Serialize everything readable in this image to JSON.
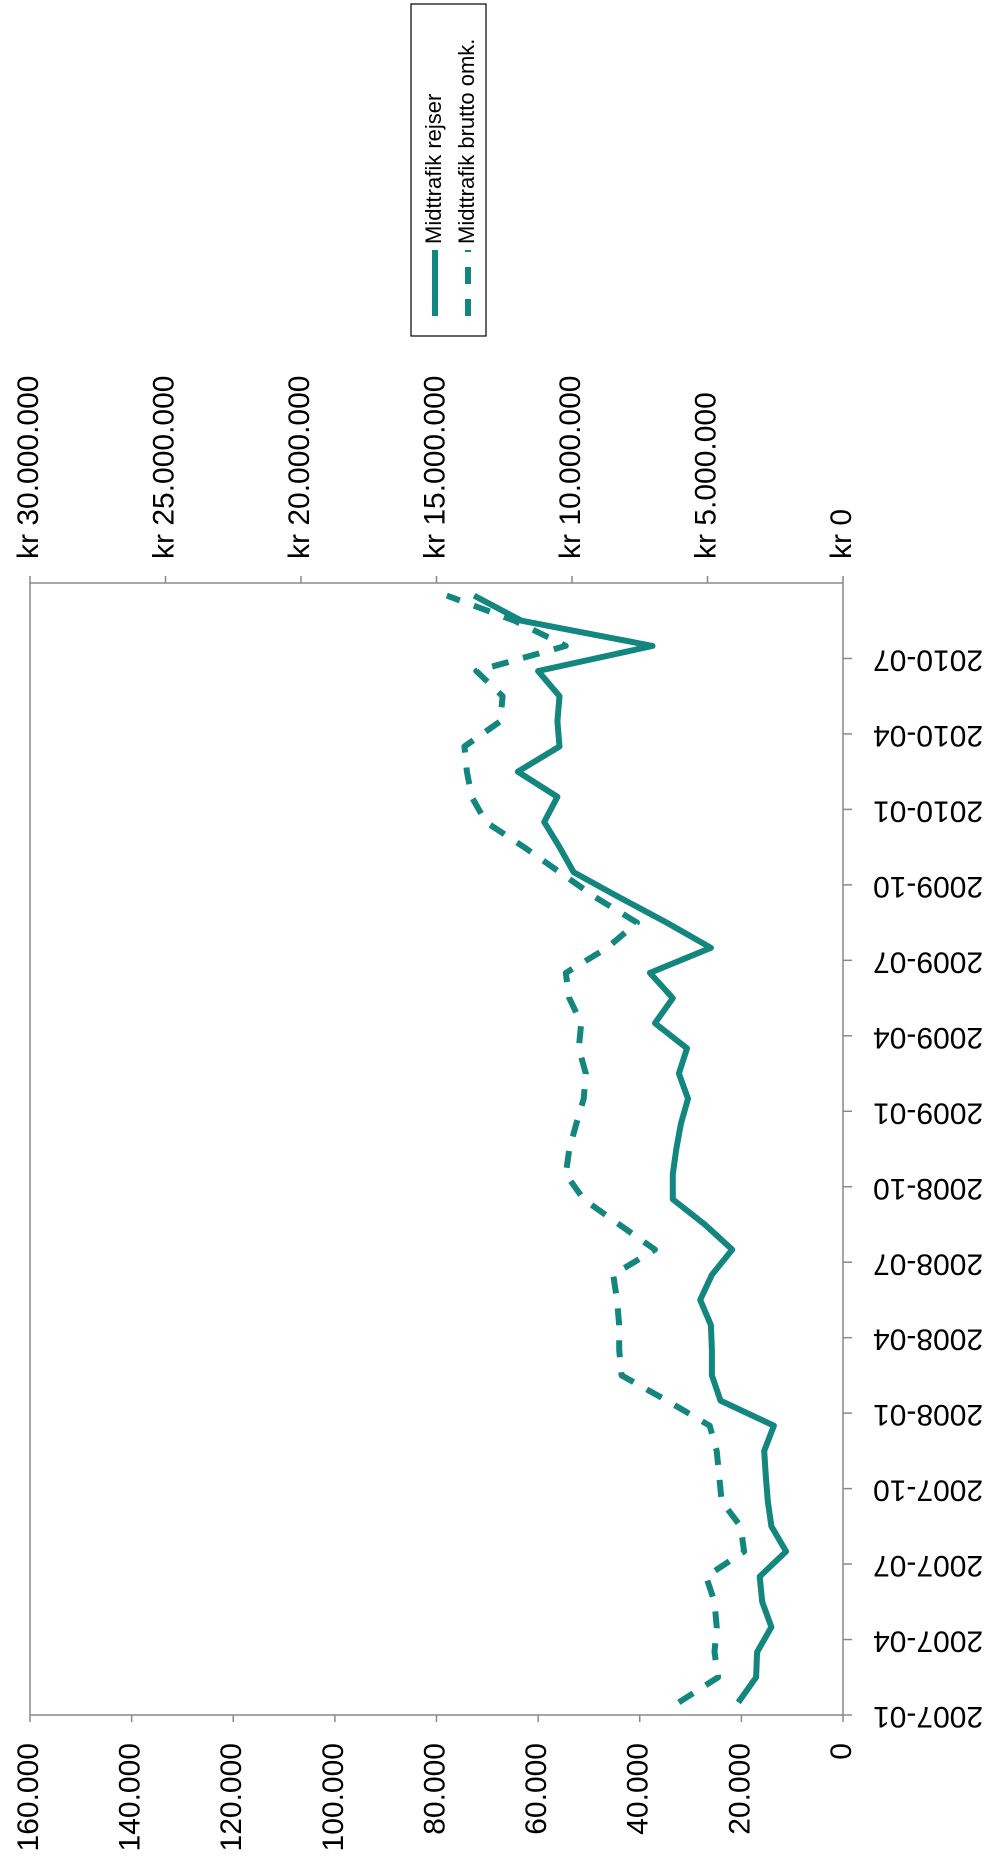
{
  "chart_data": {
    "type": "line",
    "categories": [
      "2007-01",
      null,
      null,
      "2007-04",
      null,
      null,
      "2007-07",
      null,
      null,
      "2007-10",
      null,
      null,
      "2008-01",
      null,
      null,
      "2008-04",
      null,
      null,
      "2008-07",
      null,
      null,
      "2008-10",
      null,
      null,
      "2009-01",
      null,
      null,
      "2009-04",
      null,
      null,
      "2009-07",
      null,
      null,
      "2009-10",
      null,
      null,
      "2010-01",
      null,
      null,
      "2010-04",
      null,
      null,
      "2010-07",
      null,
      null
    ],
    "series": [
      {
        "name": "Midttrafik rejser",
        "color": "#13877f",
        "style": "solid",
        "values": [
          20600,
          17100,
          16900,
          14100,
          15900,
          16400,
          11200,
          14100,
          14800,
          15200,
          15500,
          13600,
          24100,
          25800,
          25800,
          26000,
          28100,
          25800,
          21800,
          27200,
          33500,
          33500,
          32800,
          31900,
          30500,
          32300,
          30700,
          37000,
          33500,
          38000,
          26000,
          34700,
          44000,
          53000,
          55800,
          58800,
          56200,
          64000,
          55800,
          56200,
          55800,
          60000,
          37500,
          63300,
          72600
        ]
      },
      {
        "name": "Midttrafik brutto omk.",
        "color": "#13877f",
        "style": "dashed",
        "axis": "y2",
        "values": [
          6060000,
          4610000,
          4740000,
          4660000,
          4740000,
          5050000,
          3650000,
          3780000,
          4480000,
          4570000,
          4660000,
          4920000,
          6500000,
          8170000,
          8260000,
          8260000,
          8340000,
          8480000,
          6940000,
          8260000,
          9570000,
          10230000,
          10100000,
          9840000,
          9570000,
          9490000,
          9750000,
          9660000,
          10100000,
          10230000,
          8700000,
          7600000,
          9130000,
          10450000,
          11770000,
          13180000,
          13700000,
          13880000,
          13970000,
          12650000,
          12560000,
          13530000,
          10230000,
          12120000,
          14620000
        ]
      }
    ],
    "ylim": [
      0,
      160000
    ],
    "yticks": [
      0,
      {
        "value": 20000,
        "label": "20.000"
      },
      {
        "value": 40000,
        "label": "40.000"
      },
      {
        "value": 60000,
        "label": "60.000"
      },
      {
        "value": 80000,
        "label": "80.000"
      },
      {
        "value": 100000,
        "label": "100.000"
      },
      {
        "value": 120000,
        "label": "120.000"
      },
      {
        "value": 140000,
        "label": "140.000"
      },
      {
        "value": 160000,
        "label": "160.000"
      }
    ],
    "y2lim": [
      0,
      30000000
    ],
    "y2ticks": [
      {
        "value": 0,
        "label": "kr 0"
      },
      {
        "value": 5000000,
        "label": "kr 5.000.000"
      },
      {
        "value": 10000000,
        "label": "kr 10.000.000"
      },
      {
        "value": 15000000,
        "label": "kr 15.000.000"
      },
      {
        "value": 20000000,
        "label": "kr 20.000.000"
      },
      {
        "value": 25000000,
        "label": "kr 25.000.000"
      },
      {
        "value": 30000000,
        "label": "kr 30.000.000"
      }
    ],
    "grid": false,
    "legend": "right",
    "rotation": -90
  }
}
